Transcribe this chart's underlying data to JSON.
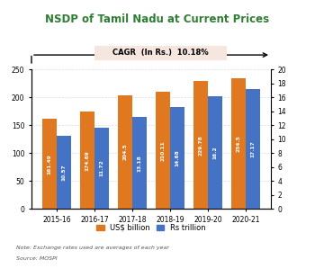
{
  "title": "NSDP of Tamil Nadu at Current Prices",
  "title_color": "#2e7d32",
  "categories": [
    "2015-16",
    "2016-17",
    "2017-18",
    "2018-19",
    "2019-20",
    "2020-21"
  ],
  "usd_values": [
    161.49,
    174.69,
    204.5,
    210.11,
    229.78,
    234.5
  ],
  "rs_values": [
    10.57,
    11.72,
    13.18,
    14.68,
    16.2,
    17.17
  ],
  "usd_color": "#E07820",
  "rs_color": "#4472C4",
  "left_ylim": [
    0,
    250
  ],
  "right_ylim": [
    0,
    20
  ],
  "left_yticks": [
    0.0,
    50.0,
    100.0,
    150.0,
    200.0,
    250.0
  ],
  "right_yticks": [
    0.0,
    2.0,
    4.0,
    6.0,
    8.0,
    10.0,
    12.0,
    14.0,
    16.0,
    18.0,
    20.0
  ],
  "cagr_text": "CAGR  (In Rs.)  10.18%",
  "cagr_box_color": "#f5e6e0",
  "legend_usd": "US$ billion",
  "legend_rs": "Rs trillion",
  "note": "Note: Exchange rates used are averages of each year",
  "source": "Source: MOSPI",
  "bar_width": 0.38,
  "background_color": "#ffffff",
  "grid_color": "#dddddd",
  "label_fontsize": 5.5,
  "tick_fontsize": 5.5
}
